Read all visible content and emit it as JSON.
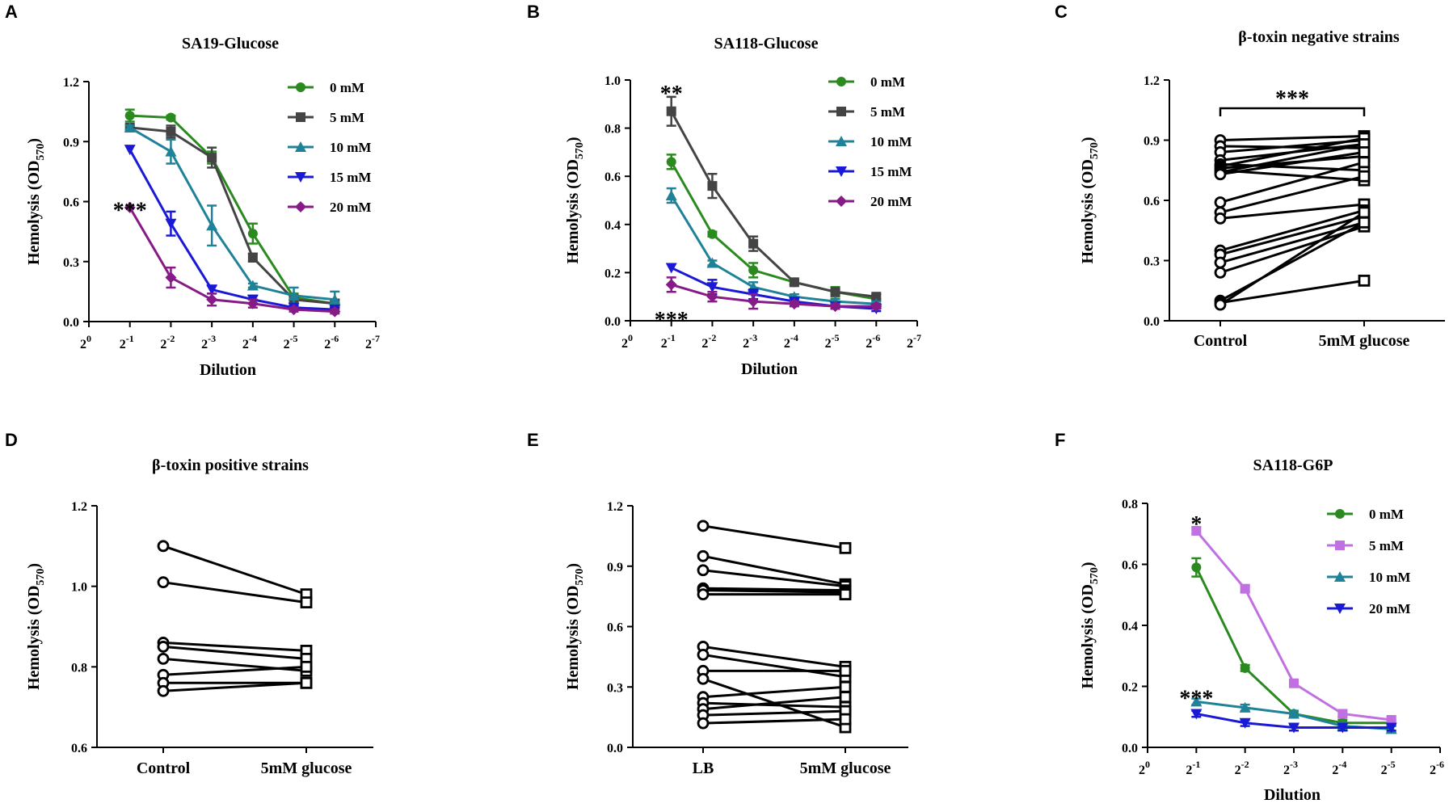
{
  "chart_data": [
    {
      "panel": "A",
      "type": "line",
      "title": "SA19-Glucose",
      "xlabel": "Dilution",
      "ylabel": "Hemolysis (OD570)",
      "ylim": [
        0,
        1.2
      ],
      "yticks": [
        "0.0",
        "0.3",
        "0.6",
        "0.9",
        "1.2"
      ],
      "xticks": [
        "0",
        "-1",
        "-2",
        "-3",
        "-4",
        "-5",
        "-6",
        "-7"
      ],
      "x": [
        1,
        2,
        3,
        4,
        5,
        6
      ],
      "series": [
        {
          "name": "0 mM",
          "color": "#2a8a1f",
          "marker": "circle",
          "values": [
            1.03,
            1.02,
            0.82,
            0.44,
            0.12,
            0.09
          ],
          "errors": [
            0.03,
            0.01,
            0.03,
            0.05,
            0.02,
            0.02
          ]
        },
        {
          "name": "5 mM",
          "color": "#444444",
          "marker": "square",
          "values": [
            0.97,
            0.95,
            0.82,
            0.32,
            0.11,
            0.09
          ],
          "errors": [
            0.01,
            0.03,
            0.05,
            0.02,
            0.02,
            0.02
          ]
        },
        {
          "name": "10 mM",
          "color": "#1f8299",
          "marker": "triangle",
          "values": [
            0.97,
            0.85,
            0.48,
            0.18,
            0.13,
            0.11
          ],
          "errors": [
            0.01,
            0.06,
            0.1,
            0.01,
            0.04,
            0.04
          ]
        },
        {
          "name": "15 mM",
          "color": "#1a1ad6",
          "marker": "triangle-down",
          "values": [
            0.86,
            0.49,
            0.16,
            0.11,
            0.07,
            0.06
          ],
          "errors": [
            0.0,
            0.06,
            0.02,
            0.02,
            0.01,
            0.01
          ]
        },
        {
          "name": "20 mM",
          "color": "#861a86",
          "marker": "diamond",
          "values": [
            0.57,
            0.22,
            0.11,
            0.09,
            0.06,
            0.05
          ],
          "errors": [
            0.0,
            0.05,
            0.03,
            0.02,
            0.01,
            0.01
          ]
        }
      ],
      "annotations": [
        {
          "text": "***",
          "x": 1,
          "y": 0.6
        }
      ]
    },
    {
      "panel": "B",
      "type": "line",
      "title": "SA118-Glucose",
      "xlabel": "Dilution",
      "ylabel": "Hemolysis (OD570)",
      "ylim": [
        0,
        1.0
      ],
      "yticks": [
        "0.0",
        "0.2",
        "0.4",
        "0.6",
        "0.8",
        "1.0"
      ],
      "xticks": [
        "0",
        "-1",
        "-2",
        "-3",
        "-4",
        "-5",
        "-6",
        "-7"
      ],
      "x": [
        1,
        2,
        3,
        4,
        5,
        6
      ],
      "series": [
        {
          "name": "0 mM",
          "color": "#2a8a1f",
          "marker": "circle",
          "values": [
            0.66,
            0.36,
            0.21,
            0.16,
            0.12,
            0.09
          ],
          "errors": [
            0.03,
            0.01,
            0.03,
            0.01,
            0.02,
            0.02
          ]
        },
        {
          "name": "5 mM",
          "color": "#444444",
          "marker": "square",
          "values": [
            0.87,
            0.56,
            0.32,
            0.16,
            0.12,
            0.1
          ],
          "errors": [
            0.06,
            0.05,
            0.03,
            0.01,
            0.01,
            0.01
          ]
        },
        {
          "name": "10 mM",
          "color": "#1f8299",
          "marker": "triangle",
          "values": [
            0.52,
            0.24,
            0.14,
            0.1,
            0.08,
            0.07
          ],
          "errors": [
            0.03,
            0.01,
            0.02,
            0.01,
            0.01,
            0.01
          ]
        },
        {
          "name": "15 mM",
          "color": "#1a1ad6",
          "marker": "triangle-down",
          "values": [
            0.22,
            0.14,
            0.11,
            0.08,
            0.06,
            0.05
          ],
          "errors": [
            0.0,
            0.03,
            0.02,
            0.01,
            0.01,
            0.01
          ]
        },
        {
          "name": "20 mM",
          "color": "#861a86",
          "marker": "diamond",
          "values": [
            0.15,
            0.1,
            0.08,
            0.07,
            0.06,
            0.06
          ],
          "errors": [
            0.03,
            0.02,
            0.03,
            0.01,
            0.01,
            0.01
          ]
        }
      ],
      "annotations": [
        {
          "text": "**",
          "x": 1,
          "y": 0.98
        },
        {
          "text": "***",
          "x": 1,
          "y": 0.04
        }
      ]
    },
    {
      "panel": "C",
      "type": "paired",
      "title": "β-toxin negative strains",
      "ylabel": "Hemolysis (OD570)",
      "ylim": [
        0,
        1.2
      ],
      "yticks": [
        "0.0",
        "0.3",
        "0.6",
        "0.9",
        "1.2"
      ],
      "categories": [
        "Control",
        "5mM glucose"
      ],
      "pairs": [
        [
          0.9,
          0.92
        ],
        [
          0.87,
          0.86
        ],
        [
          0.84,
          0.9
        ],
        [
          0.8,
          0.88
        ],
        [
          0.78,
          0.75
        ],
        [
          0.77,
          0.91
        ],
        [
          0.76,
          0.82
        ],
        [
          0.75,
          0.7
        ],
        [
          0.74,
          0.88
        ],
        [
          0.73,
          0.84
        ],
        [
          0.59,
          0.79
        ],
        [
          0.54,
          0.72
        ],
        [
          0.51,
          0.58
        ],
        [
          0.35,
          0.55
        ],
        [
          0.33,
          0.52
        ],
        [
          0.29,
          0.49
        ],
        [
          0.24,
          0.47
        ],
        [
          0.1,
          0.49
        ],
        [
          0.09,
          0.2
        ],
        [
          0.08,
          0.54
        ]
      ],
      "annotations": [
        {
          "text": "***",
          "bracket": true
        }
      ]
    },
    {
      "panel": "D",
      "type": "paired",
      "title": "β-toxin positive strains",
      "ylabel": "Hemolysis (OD570)",
      "ylim": [
        0.6,
        1.2
      ],
      "yticks": [
        "0.6",
        "0.8",
        "1.0",
        "1.2"
      ],
      "categories": [
        "Control",
        "5mM glucose"
      ],
      "pairs": [
        [
          1.1,
          0.98
        ],
        [
          1.01,
          0.96
        ],
        [
          0.86,
          0.84
        ],
        [
          0.85,
          0.82
        ],
        [
          0.82,
          0.79
        ],
        [
          0.78,
          0.8
        ],
        [
          0.76,
          0.76
        ],
        [
          0.74,
          0.76
        ]
      ],
      "annotations": []
    },
    {
      "panel": "E",
      "type": "paired",
      "title": "",
      "ylabel": "Hemolysis (OD570)",
      "ylim": [
        0,
        1.2
      ],
      "yticks": [
        "0.0",
        "0.3",
        "0.6",
        "0.9",
        "1.2"
      ],
      "categories": [
        "LB",
        "5mM glucose"
      ],
      "pairs": [
        [
          1.1,
          0.99
        ],
        [
          0.95,
          0.81
        ],
        [
          0.88,
          0.8
        ],
        [
          0.79,
          0.78
        ],
        [
          0.78,
          0.77
        ],
        [
          0.76,
          0.76
        ],
        [
          0.5,
          0.4
        ],
        [
          0.46,
          0.35
        ],
        [
          0.38,
          0.38
        ],
        [
          0.34,
          0.1
        ],
        [
          0.25,
          0.3
        ],
        [
          0.22,
          0.2
        ],
        [
          0.19,
          0.25
        ],
        [
          0.16,
          0.18
        ],
        [
          0.12,
          0.14
        ]
      ],
      "annotations": []
    },
    {
      "panel": "F",
      "type": "line",
      "title": "SA118-G6P",
      "xlabel": "Dilution",
      "ylabel": "Hemolysis (OD570)",
      "ylim": [
        0,
        0.8
      ],
      "yticks": [
        "0.0",
        "0.2",
        "0.4",
        "0.6",
        "0.8"
      ],
      "xticks": [
        "0",
        "-1",
        "-2",
        "-3",
        "-4",
        "-5",
        "-6"
      ],
      "x": [
        1,
        2,
        3,
        4,
        5
      ],
      "series": [
        {
          "name": "0 mM",
          "color": "#2a8a1f",
          "marker": "circle",
          "values": [
            0.59,
            0.26,
            0.11,
            0.08,
            0.08
          ],
          "errors": [
            0.03,
            0.01,
            0.01,
            0.01,
            0.01
          ]
        },
        {
          "name": "5 mM",
          "color": "#c070e0",
          "marker": "square",
          "values": [
            0.71,
            0.52,
            0.21,
            0.11,
            0.09
          ],
          "errors": [
            0.01,
            0.01,
            0.01,
            0.01,
            0.01
          ]
        },
        {
          "name": "10 mM",
          "color": "#1f8299",
          "marker": "triangle",
          "values": [
            0.15,
            0.13,
            0.11,
            0.07,
            0.06
          ],
          "errors": [
            0.01,
            0.01,
            0.01,
            0.01,
            0.01
          ]
        },
        {
          "name": "20 mM",
          "color": "#1a1ad6",
          "marker": "triangle-down",
          "values": [
            0.11,
            0.08,
            0.065,
            0.065,
            0.065
          ],
          "errors": [
            0.01,
            0.01,
            0.01,
            0.01,
            0.01
          ]
        }
      ],
      "annotations": [
        {
          "text": "*",
          "x": 1,
          "y": 0.76
        },
        {
          "text": "***",
          "x": 1,
          "y": 0.19
        }
      ]
    }
  ]
}
